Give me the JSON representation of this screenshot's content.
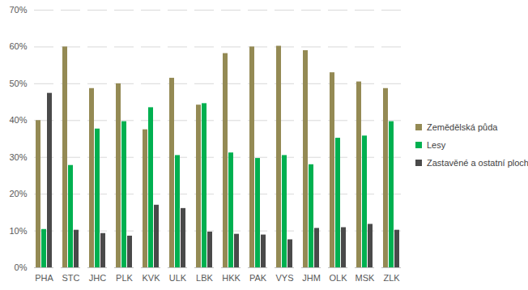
{
  "chart_data": {
    "type": "bar",
    "categories": [
      "PHA",
      "STC",
      "JHC",
      "PLK",
      "KVK",
      "ULK",
      "LBK",
      "HKK",
      "PAK",
      "VYS",
      "JHM",
      "OLK",
      "MSK",
      "ZLK"
    ],
    "series": [
      {
        "name": "Zemědělská půda",
        "color": "#948a54",
        "values": [
          40,
          60,
          48.7,
          50,
          37.5,
          51.5,
          44.2,
          58.2,
          60,
          60.2,
          59,
          53,
          50.5,
          48.7
        ]
      },
      {
        "name": "Lesy",
        "color": "#00b050",
        "values": [
          10.4,
          27.8,
          37.7,
          39.7,
          43.5,
          30.5,
          44.6,
          31.2,
          29.7,
          30.5,
          28,
          35.2,
          35.8,
          39.7
        ]
      },
      {
        "name": "Zastavěné a ostatní plochy",
        "color": "#4a4a4a",
        "values": [
          47.4,
          10.2,
          9.3,
          8.6,
          17,
          16.1,
          9.7,
          9.1,
          8.9,
          7.6,
          10.7,
          10.9,
          11.8,
          10.2
        ]
      }
    ],
    "ylim": [
      0,
      70
    ],
    "yticks": [
      {
        "value": 0,
        "label": "0%"
      },
      {
        "value": 10,
        "label": "10%"
      },
      {
        "value": 20,
        "label": "20%"
      },
      {
        "value": 30,
        "label": "30%"
      },
      {
        "value": 40,
        "label": "40%"
      },
      {
        "value": 50,
        "label": "50%"
      },
      {
        "value": 60,
        "label": "60%"
      },
      {
        "value": 70,
        "label": "70%"
      }
    ],
    "grid": true,
    "legend": "right"
  }
}
